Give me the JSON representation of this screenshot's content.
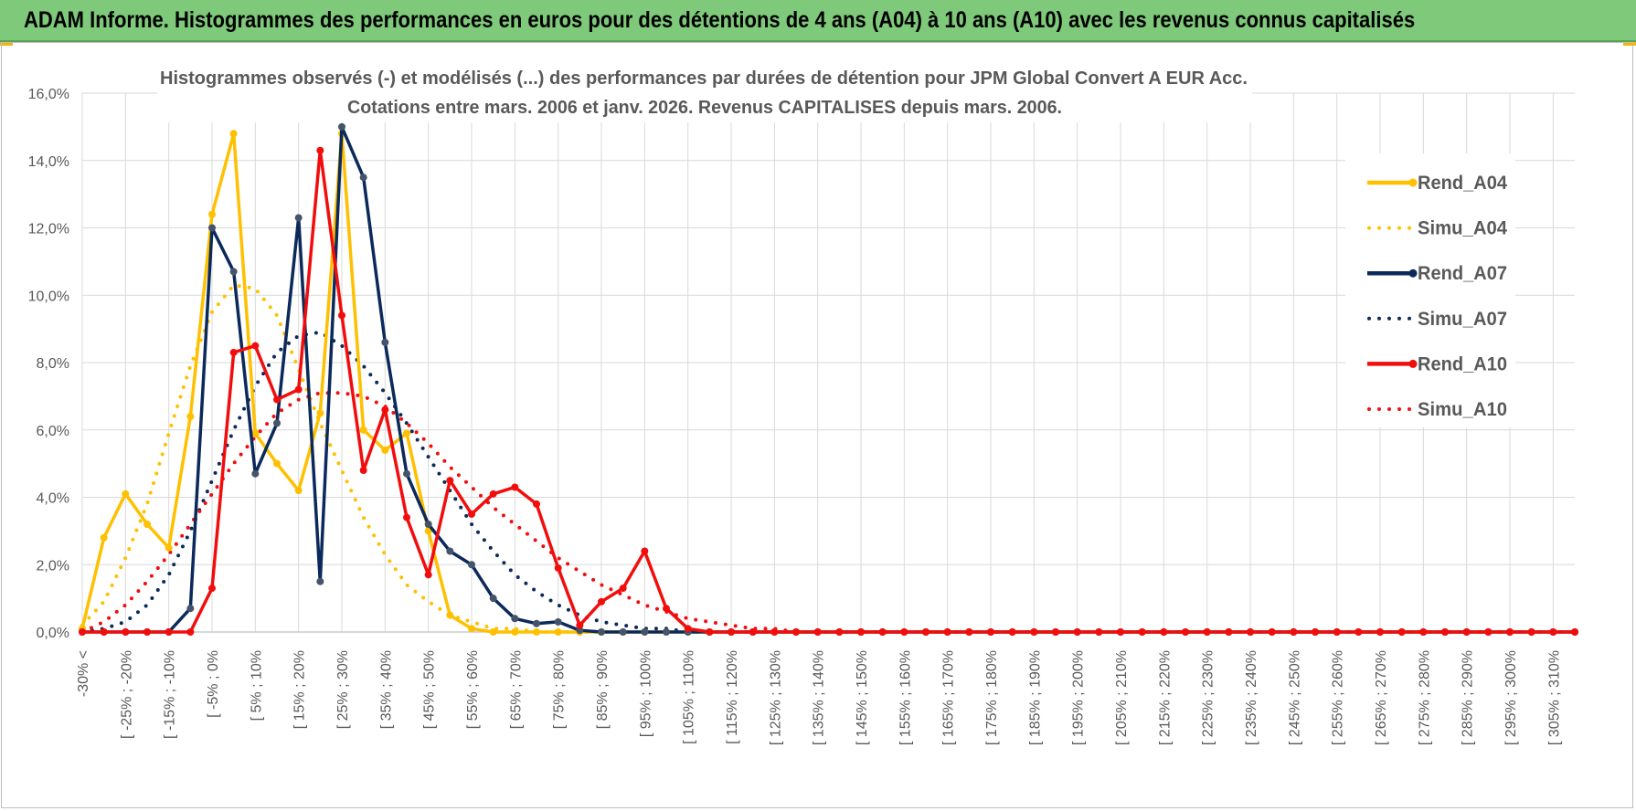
{
  "banner": {
    "title": "ADAM Informe. Histogrammes des performances en euros pour des détentions de 4 ans (A04) à 10 ans (A10) avec les revenus connus capitalisés"
  },
  "colors": {
    "banner_bg": "#7ec97a",
    "A04": "#ffc000",
    "A07": "#0b2a5b",
    "A10": "#f20d0d",
    "grid": "#d9d9d9",
    "text": "#595959"
  },
  "chart_data": {
    "type": "line",
    "title_line1": "Histogrammes observés (-) et modélisés (...) des performances par durées de détention pour JPM Global Convert A EUR Acc.",
    "title_line2": "Cotations entre mars. 2006 et janv. 2026. Revenus CAPITALISES depuis mars. 2006.",
    "ylim": [
      0,
      16
    ],
    "yticks": [
      "0,0%",
      "2,0%",
      "4,0%",
      "6,0%",
      "8,0%",
      "10,0%",
      "12,0%",
      "14,0%",
      "16,0%"
    ],
    "x_tick_labels": [
      "-30% <",
      "[ -25% ; -20%",
      "[ -15% ; -10%",
      "[ -5% ; 0%",
      "[ 5% ; 10%",
      "[ 15% ; 20%",
      "[ 25% ; 30%",
      "[ 35% ; 40%",
      "[ 45% ; 50%",
      "[ 55% ; 60%",
      "[ 65% ; 70%",
      "[ 75% ; 80%",
      "[ 85% ; 90%",
      "[ 95% ; 100%",
      "[ 105% ; 110%",
      "[ 115% ; 120%",
      "[ 125% ; 130%",
      "[ 135% ; 140%",
      "[ 145% ; 150%",
      "[ 155% ; 160%",
      "[ 165% ; 170%",
      "[ 175% ; 180%",
      "[ 185% ; 190%",
      "[ 195% ; 200%",
      "[ 205% ; 210%",
      "[ 215% ; 220%",
      "[ 225% ; 230%",
      "[ 235% ; 240%",
      "[ 245% ; 250%",
      "[ 255% ; 260%",
      "[ 265% ; 270%",
      "[ 275% ; 280%",
      "[ 285% ; 290%",
      "[ 295% ; 300%",
      "[ 305% ; 310%"
    ],
    "series": [
      {
        "name": "Rend_A04",
        "style": "solid",
        "color": "#ffc000",
        "values": [
          0.1,
          2.8,
          4.1,
          3.2,
          2.5,
          6.4,
          12.4,
          14.8,
          5.9,
          5.0,
          4.2,
          6.5,
          14.8,
          6.0,
          5.4,
          5.9,
          3.0,
          0.5,
          0.1,
          0,
          0,
          0,
          0,
          0,
          0
        ]
      },
      {
        "name": "Simu_A04",
        "style": "dotted",
        "color": "#ffc000",
        "values": [
          0.2,
          0.9,
          2.2,
          3.8,
          5.9,
          7.9,
          9.5,
          10.3,
          10.2,
          9.4,
          7.8,
          6.2,
          4.8,
          3.4,
          2.3,
          1.4,
          0.9,
          0.5,
          0.3,
          0.1,
          0.1,
          0,
          0
        ]
      },
      {
        "name": "Rend_A07",
        "style": "solid",
        "color": "#0b2a5b",
        "values": [
          0,
          0,
          0,
          0,
          0,
          0.7,
          12.0,
          10.7,
          4.7,
          6.2,
          12.3,
          1.5,
          15.0,
          13.5,
          8.6,
          4.7,
          3.2,
          2.4,
          2.0,
          1.0,
          0.4,
          0.25,
          0.3,
          0.05,
          0,
          0,
          0,
          0,
          0
        ]
      },
      {
        "name": "Simu_A07",
        "style": "dotted",
        "color": "#0b2a5b",
        "values": [
          0,
          0.1,
          0.3,
          0.8,
          1.7,
          3.0,
          4.5,
          6.0,
          7.3,
          8.3,
          8.8,
          8.9,
          8.5,
          7.9,
          7.1,
          6.2,
          5.2,
          4.2,
          3.2,
          2.4,
          1.7,
          1.2,
          0.8,
          0.5,
          0.3,
          0.2,
          0.1,
          0.1,
          0
        ]
      },
      {
        "name": "Rend_A10",
        "style": "solid",
        "color": "#f20d0d",
        "values": [
          0,
          0,
          0,
          0,
          0,
          0,
          1.3,
          8.3,
          8.5,
          6.9,
          7.2,
          14.3,
          9.4,
          4.8,
          6.6,
          3.4,
          1.7,
          4.5,
          3.5,
          4.1,
          4.3,
          3.8,
          1.9,
          0.2,
          0.9,
          1.3,
          2.4,
          0.7,
          0.1,
          0
        ]
      },
      {
        "name": "Simu_A10",
        "style": "dotted",
        "color": "#f20d0d",
        "values": [
          0,
          0.3,
          0.8,
          1.5,
          2.3,
          3.2,
          4.1,
          5.0,
          5.8,
          6.5,
          6.9,
          7.1,
          7.1,
          7.0,
          6.7,
          6.2,
          5.6,
          4.9,
          4.3,
          3.7,
          3.2,
          2.7,
          2.2,
          1.8,
          1.4,
          1.1,
          0.8,
          0.6,
          0.4,
          0.3,
          0.2,
          0.1,
          0.1,
          0
        ]
      }
    ]
  }
}
